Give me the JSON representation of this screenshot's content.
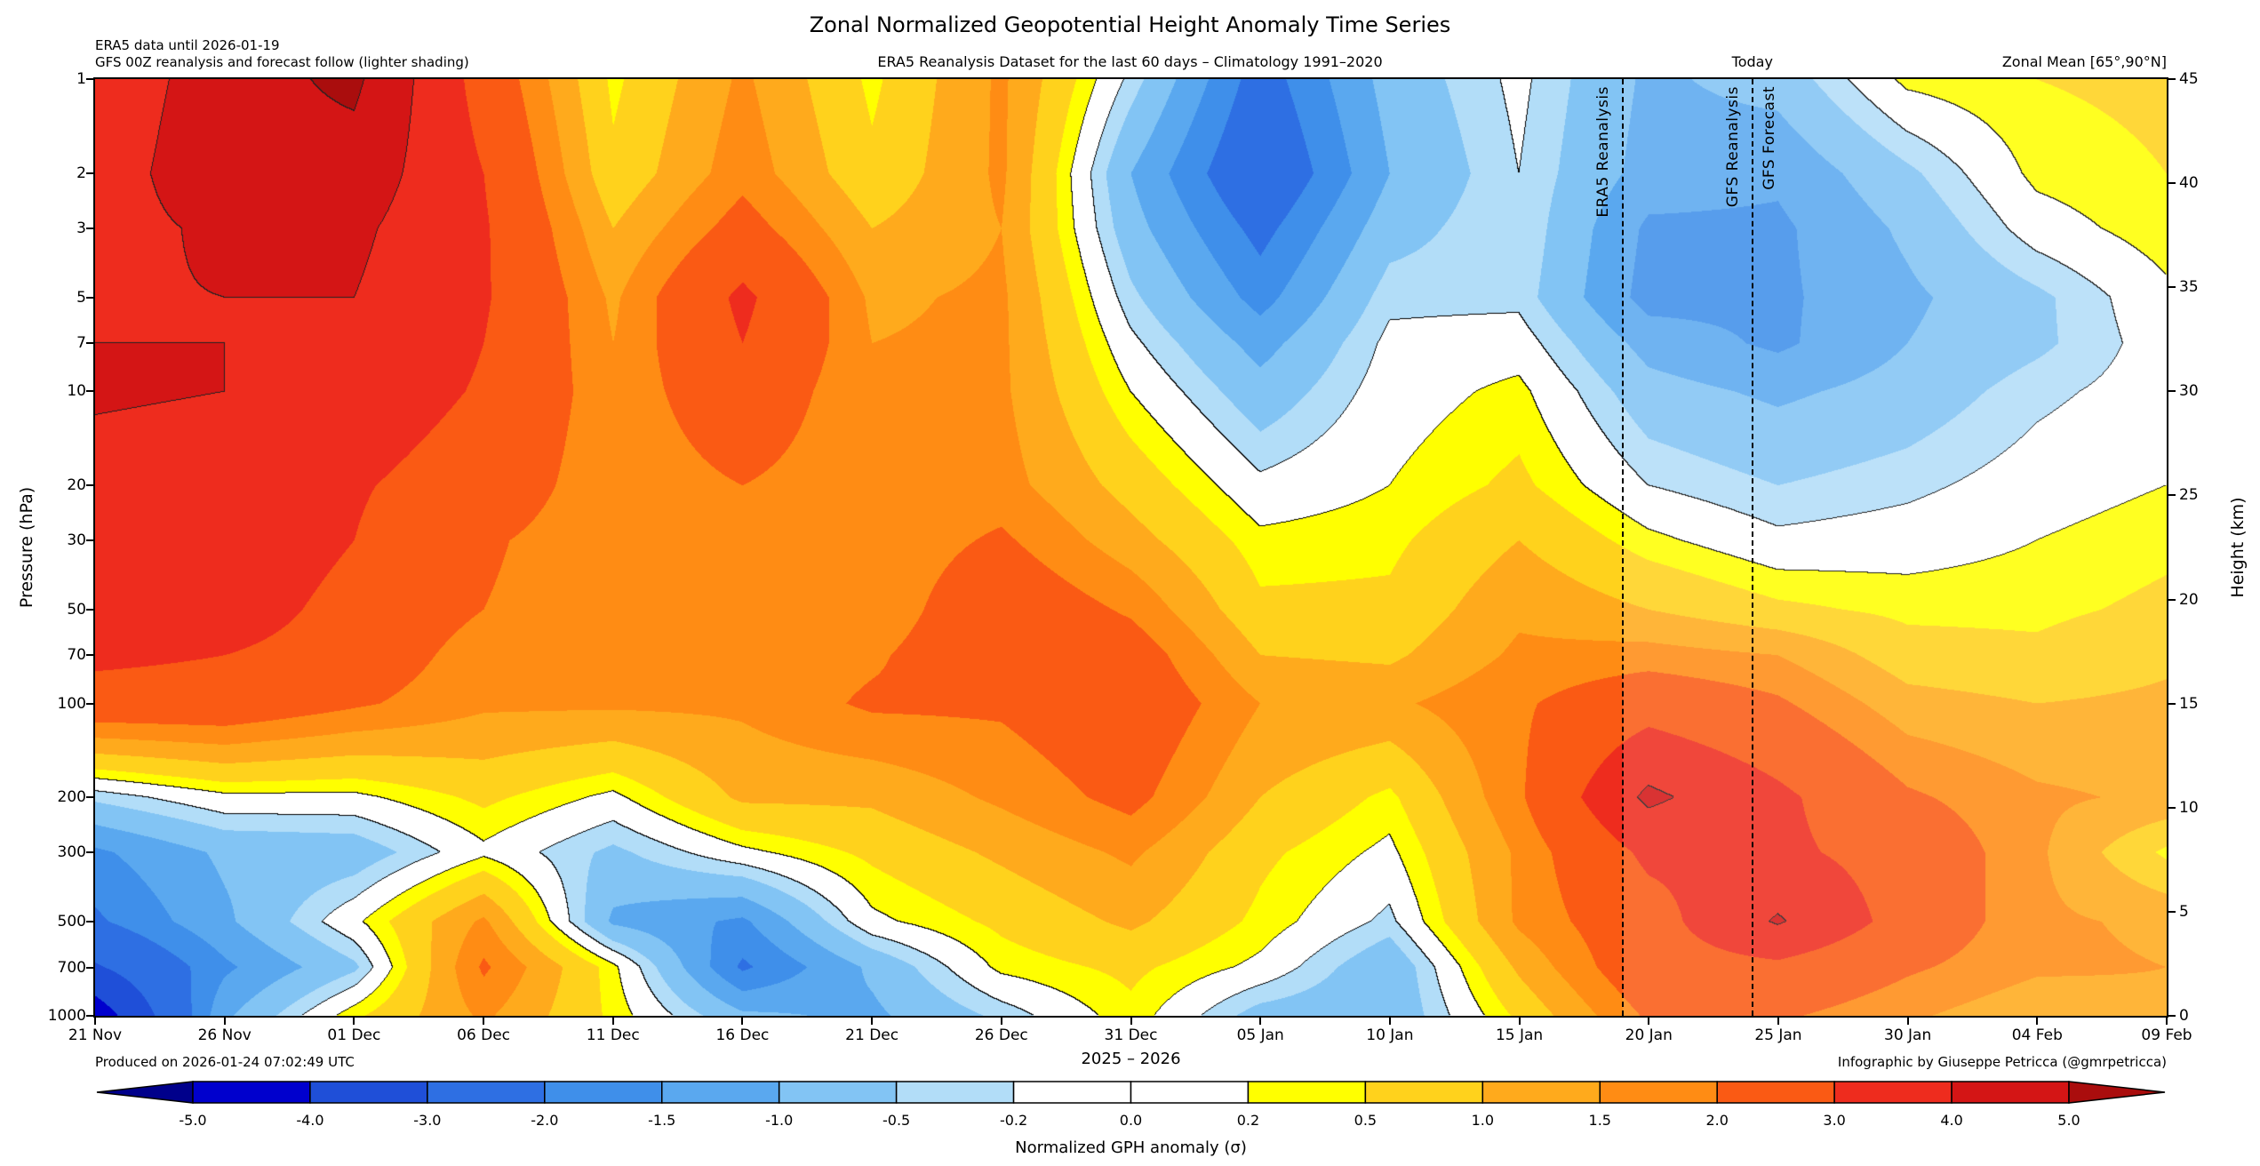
{
  "title": "Zonal Normalized Geopotential Height Anomaly Time Series",
  "header": {
    "left_line1": "ERA5 data until 2026-01-19",
    "left_line2": "GFS 00Z reanalysis and forecast follow (lighter shading)",
    "center": "ERA5 Reanalysis Dataset for the last 60 days – Climatology 1991–2020",
    "right": "Zonal Mean [65°,90°N]"
  },
  "annotations": {
    "era5_line_label": "ERA5 Reanalysis",
    "era5_line_day": 59,
    "gfs_reanalysis_label": "GFS Reanalysis",
    "gfs_forecast_label": "GFS Forecast",
    "today_label": "Today",
    "today_line_day": 64
  },
  "footer": {
    "produced": "Produced on 2026-01-24 07:02:49 UTC",
    "credit": "Infographic by Giuseppe Petricca (@gmrpetricca)"
  },
  "colorbar": {
    "title": "Normalized GPH anomaly (σ)",
    "tick_labels": [
      "-5.0",
      "-4.0",
      "-3.0",
      "-2.0",
      "-1.5",
      "-1.0",
      "-0.5",
      "-0.2",
      "0.0",
      "0.2",
      "0.5",
      "1.0",
      "1.5",
      "2.0",
      "3.0",
      "4.0",
      "5.0"
    ],
    "levels": [
      -5,
      -4,
      -3,
      -2,
      -1.5,
      -1,
      -0.5,
      -0.2,
      0,
      0.2,
      0.5,
      1,
      1.5,
      2,
      3,
      4,
      5
    ],
    "under_color": "#00008b",
    "over_color": "#aa0d0d",
    "colors": [
      "#0000cd",
      "#1f4fd8",
      "#2e6fe3",
      "#3f8fea",
      "#5aa8ef",
      "#82c4f4",
      "#b2ddf8",
      "#ffffff",
      "#ffffff",
      "#ffff00",
      "#ffd21c",
      "#ffaa1c",
      "#ff8c14",
      "#fa5a14",
      "#ee2c1e",
      "#d41515"
    ]
  },
  "chart_data": {
    "type": "heatmap",
    "title": "Zonal Normalized Geopotential Height Anomaly Time Series",
    "xlabel": "2025 – 2026",
    "ylabel_left": "Pressure (hPa)",
    "ylabel_right": "Height (km)",
    "x_tick_labels": [
      "21 Nov",
      "26 Nov",
      "01 Dec",
      "06 Dec",
      "11 Dec",
      "16 Dec",
      "21 Dec",
      "26 Dec",
      "31 Dec",
      "05 Jan",
      "10 Jan",
      "15 Jan",
      "20 Jan",
      "25 Jan",
      "30 Jan",
      "04 Feb",
      "09 Feb"
    ],
    "x_days": [
      0,
      5,
      10,
      15,
      20,
      25,
      30,
      35,
      40,
      45,
      50,
      55,
      60,
      65,
      70,
      75,
      80
    ],
    "total_days": 80,
    "y_left_ticks": [
      1,
      2,
      3,
      5,
      7,
      10,
      20,
      30,
      50,
      70,
      100,
      200,
      300,
      500,
      700,
      1000
    ],
    "y_right_ticks": [
      45,
      40,
      35,
      30,
      25,
      20,
      15,
      10,
      5,
      0
    ],
    "pressure_levels": [
      1,
      2,
      3,
      5,
      7,
      10,
      20,
      30,
      50,
      70,
      100,
      200,
      300,
      500,
      700,
      1000
    ],
    "values_sigma": [
      [
        3.2,
        4.6,
        5.2,
        2.6,
        0.4,
        1.6,
        0.4,
        1.6,
        -0.3,
        -2.3,
        -0.8,
        -0.1,
        -1.1,
        -0.8,
        0.3,
        0.5,
        0.6
      ],
      [
        3.4,
        4.8,
        4.6,
        3.0,
        0.6,
        1.8,
        0.6,
        1.6,
        -1.0,
        -2.7,
        -1.0,
        -0.2,
        -1.2,
        -1.4,
        -0.6,
        0.3,
        0.5
      ],
      [
        3.6,
        4.2,
        4.2,
        3.1,
        1.0,
        2.3,
        1.0,
        1.5,
        -0.8,
        -2.2,
        -0.7,
        -0.2,
        -1.6,
        -1.6,
        -0.9,
        0.0,
        0.4
      ],
      [
        3.9,
        4.0,
        4.0,
        3.1,
        1.4,
        3.2,
        1.4,
        1.6,
        -0.4,
        -1.7,
        -0.3,
        -0.3,
        -1.7,
        -1.6,
        -1.1,
        -0.6,
        0.1
      ],
      [
        4.0,
        4.0,
        3.9,
        3.0,
        1.5,
        3.0,
        1.5,
        1.6,
        -0.1,
        -1.2,
        -0.1,
        0.0,
        -1.2,
        -1.6,
        -1.0,
        -0.6,
        0.0
      ],
      [
        4.1,
        4.0,
        3.6,
        2.9,
        1.6,
        2.6,
        1.5,
        1.6,
        0.2,
        -0.8,
        0.0,
        0.3,
        -0.8,
        -1.1,
        -0.8,
        -0.3,
        0.0
      ],
      [
        3.7,
        3.6,
        3.1,
        2.5,
        1.6,
        2.0,
        1.6,
        1.7,
        0.8,
        -0.1,
        0.2,
        0.6,
        -0.2,
        -0.5,
        -0.3,
        0.0,
        0.2
      ],
      [
        3.6,
        3.9,
        3.0,
        2.1,
        1.6,
        1.7,
        1.6,
        2.1,
        1.2,
        0.3,
        0.4,
        1.0,
        0.3,
        -0.1,
        0.0,
        0.2,
        0.4
      ],
      [
        4.0,
        3.6,
        2.6,
        2.0,
        1.6,
        1.6,
        1.6,
        2.6,
        1.9,
        0.6,
        0.6,
        1.4,
        1.0,
        0.6,
        0.4,
        0.4,
        0.6
      ],
      [
        3.2,
        3.0,
        2.5,
        1.7,
        1.6,
        1.6,
        1.9,
        2.6,
        2.4,
        1.0,
        0.9,
        1.6,
        1.7,
        1.5,
        0.7,
        0.6,
        0.9
      ],
      [
        2.6,
        2.6,
        2.1,
        1.6,
        1.6,
        1.6,
        2.1,
        2.1,
        2.6,
        1.5,
        1.4,
        1.9,
        2.6,
        2.1,
        1.2,
        1.0,
        1.1
      ],
      [
        -0.4,
        0.1,
        0.1,
        0.6,
        0.1,
        1.1,
        1.1,
        1.6,
        2.2,
        1.0,
        0.4,
        1.9,
        4.2,
        3.2,
        2.1,
        1.6,
        1.4
      ],
      [
        -1.6,
        -0.9,
        -0.8,
        0.1,
        -0.6,
        0.1,
        0.6,
        1.1,
        1.6,
        0.6,
        0.1,
        1.6,
        3.2,
        3.2,
        2.6,
        1.6,
        0.4
      ],
      [
        -2.1,
        -1.1,
        0.1,
        1.6,
        -1.1,
        -1.6,
        0.1,
        0.6,
        1.1,
        0.4,
        -0.3,
        1.6,
        2.6,
        4.1,
        2.6,
        1.6,
        1.4
      ],
      [
        -3.1,
        -1.6,
        -0.6,
        2.1,
        0.3,
        -2.1,
        -0.9,
        0.3,
        0.6,
        0.1,
        -0.9,
        1.1,
        2.6,
        2.8,
        2.1,
        1.6,
        1.5
      ],
      [
        -4.6,
        -1.1,
        0.4,
        1.6,
        0.4,
        -0.9,
        -1.1,
        -0.4,
        0.4,
        -0.7,
        -0.9,
        0.6,
        2.1,
        2.1,
        1.6,
        1.1,
        1.4
      ]
    ]
  }
}
